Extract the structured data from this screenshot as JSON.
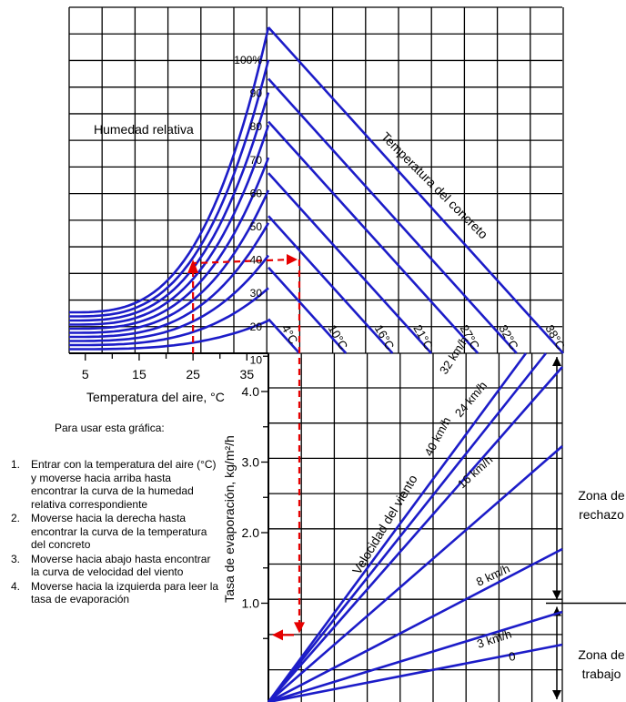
{
  "chart_data": [
    {
      "type": "line",
      "panel": "temperatura del aire / humedad relativa / temperatura del concreto",
      "xlabel": "Temperatura del aire, °C",
      "xticks": [
        "5",
        "15",
        "25",
        "35"
      ],
      "xlim": [
        2,
        39
      ],
      "humidity_label": "Humedad relativa",
      "humidity_curves": [
        {
          "label": "100%",
          "rh": 100
        },
        {
          "label": "90",
          "rh": 90
        },
        {
          "label": "80",
          "rh": 80
        },
        {
          "label": "70",
          "rh": 70
        },
        {
          "label": "60",
          "rh": 60
        },
        {
          "label": "50",
          "rh": 50
        },
        {
          "label": "40",
          "rh": 40
        },
        {
          "label": "30",
          "rh": 30
        },
        {
          "label": "20",
          "rh": 20
        },
        {
          "label": "10",
          "rh": 10
        }
      ],
      "concrete_label": "Temperatura del concreto",
      "concrete_temps": [
        {
          "label": "4°C",
          "t": 4
        },
        {
          "label": "10°C",
          "t": 10
        },
        {
          "label": "16°C",
          "t": 16
        },
        {
          "label": "21°C",
          "t": 21
        },
        {
          "label": "27°C",
          "t": 27
        },
        {
          "label": "32°C",
          "t": 32
        },
        {
          "label": "38°C",
          "t": 38
        }
      ]
    },
    {
      "type": "line",
      "panel": "velocidad del viento / tasa de evaporación",
      "ylabel": "Tasa de evaporación, kg/m²/h",
      "yticks": [
        "1.0",
        "2.0",
        "3.0",
        "4.0"
      ],
      "ylim": [
        0,
        4.6
      ],
      "wind_label": "Velocidad del viento",
      "wind_speeds": [
        {
          "label": "0",
          "kmh": 0
        },
        {
          "label": "3 km/h",
          "kmh": 3
        },
        {
          "label": "8 km/h",
          "kmh": 8
        },
        {
          "label": "16 km/h",
          "kmh": 16
        },
        {
          "label": "24 km/h",
          "kmh": 24
        },
        {
          "label": "32 km/h",
          "kmh": 32
        },
        {
          "label": "40 km/h",
          "kmh": 40
        }
      ],
      "example_path": {
        "air_temp_c": 25,
        "relative_humidity": 40,
        "concrete_temp_c": 10,
        "wind_kmh": 40,
        "evaporation_rate": 0.55
      },
      "zones": [
        {
          "label_line1": "Zona de",
          "label_line2": "rechazo",
          "from": 1.0,
          "to": 4.6
        },
        {
          "label_line1": "Zona de",
          "label_line2": "trabajo",
          "from": 0,
          "to": 1.0
        }
      ]
    }
  ],
  "instructions": {
    "title": "Para usar esta gráfica:",
    "steps": [
      {
        "num": "1.",
        "text": "Entrar con  la temperatura del aire (°C) y moverse hacia arriba hasta encontrar la curva de la humedad relativa correspondiente"
      },
      {
        "num": "2.",
        "text": "Moverse hacia la derecha hasta encontrar la curva de la temperatura del concreto"
      },
      {
        "num": "3.",
        "text": "Moverse hacia abajo hasta encontrar la curva de velocidad del viento"
      },
      {
        "num": "4.",
        "text": "Moverse hacia la izquierda para leer la tasa de evaporación"
      }
    ]
  },
  "colors": {
    "curves": "#1c1cc8",
    "grid": "#000000",
    "path": "#e60000"
  }
}
